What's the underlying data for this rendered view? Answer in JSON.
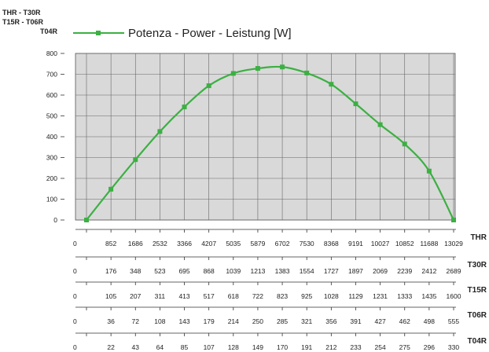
{
  "header": {
    "models_line1": "THR - T30R",
    "models_line2": "T15R - T06R",
    "models_line3": "T04R"
  },
  "legend": {
    "label": "Potenza - Power - Leistung [W]"
  },
  "colors": {
    "line": "#3cb043",
    "plot_bg": "#d9d9d9",
    "grid": "#555555"
  },
  "chart_data": {
    "type": "line",
    "series": [
      {
        "name": "Potenza - Power - Leistung [W]",
        "values": [
          0,
          148,
          290,
          425,
          543,
          645,
          704,
          728,
          735,
          706,
          652,
          558,
          458,
          365,
          235,
          0
        ]
      }
    ],
    "ylim": [
      0,
      800
    ],
    "yticks": [
      "800",
      "700",
      "600",
      "500",
      "400",
      "300",
      "200",
      "100",
      "0"
    ],
    "grid": true,
    "legend_position": "top",
    "speed_rows": [
      {
        "name": "THR",
        "values": [
          "0",
          "852",
          "1686",
          "2532",
          "3366",
          "4207",
          "5035",
          "5879",
          "6702",
          "7530",
          "8368",
          "9191",
          "10027",
          "10852",
          "11688",
          "13029"
        ]
      },
      {
        "name": "T30R",
        "values": [
          "0",
          "176",
          "348",
          "523",
          "695",
          "868",
          "1039",
          "1213",
          "1383",
          "1554",
          "1727",
          "1897",
          "2069",
          "2239",
          "2412",
          "2689"
        ]
      },
      {
        "name": "T15R",
        "values": [
          "0",
          "105",
          "207",
          "311",
          "413",
          "517",
          "618",
          "722",
          "823",
          "925",
          "1028",
          "1129",
          "1231",
          "1333",
          "1435",
          "1600"
        ]
      },
      {
        "name": "T06R",
        "values": [
          "0",
          "36",
          "72",
          "108",
          "143",
          "179",
          "214",
          "250",
          "285",
          "321",
          "356",
          "391",
          "427",
          "462",
          "498",
          "555"
        ]
      },
      {
        "name": "T04R",
        "values": [
          "0",
          "22",
          "43",
          "64",
          "85",
          "107",
          "128",
          "149",
          "170",
          "191",
          "212",
          "233",
          "254",
          "275",
          "296",
          "330"
        ]
      }
    ]
  }
}
